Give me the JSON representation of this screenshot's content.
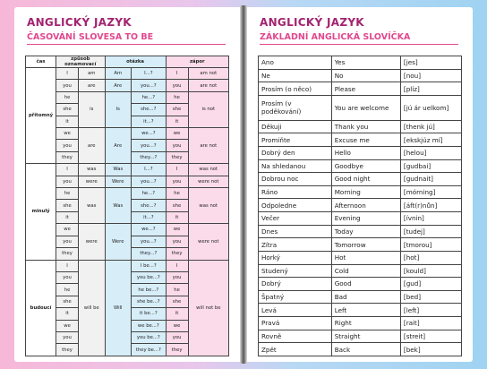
{
  "left_page": {
    "title": "ANGLICKÝ JAZYK",
    "subtitle": "ČASOVÁNÍ SLOVESA TO BE",
    "table": {
      "headers": [
        "čas",
        "způsob oznamovací",
        "otázka",
        "zápor"
      ],
      "sections": [
        {
          "tense": "přítomný",
          "groups": [
            {
              "pronouns": [
                "I"
              ],
              "verb": "am",
              "question_verb": "Am",
              "questions": [
                "I...?"
              ],
              "negation": "am not"
            },
            {
              "pronouns": [
                "you"
              ],
              "verb": "are",
              "question_verb": "Are",
              "questions": [
                "you...?"
              ],
              "negation": "are not"
            },
            {
              "pronouns": [
                "he",
                "she",
                "it"
              ],
              "verb": "is",
              "question_verb": "Is",
              "questions": [
                "he...?",
                "she...?",
                "it...?"
              ],
              "negation": "is not"
            },
            {
              "pronouns": [
                "we",
                "you",
                "they"
              ],
              "verb": "are",
              "question_verb": "Are",
              "questions": [
                "we...?",
                "you...?",
                "they...?"
              ],
              "negation": "are not"
            }
          ]
        },
        {
          "tense": "minulý",
          "groups": [
            {
              "pronouns": [
                "I"
              ],
              "verb": "was",
              "question_verb": "Was",
              "questions": [
                "I...?"
              ],
              "negation": "was not"
            },
            {
              "pronouns": [
                "you"
              ],
              "verb": "were",
              "question_verb": "Were",
              "questions": [
                "you...?"
              ],
              "negation": "were not"
            },
            {
              "pronouns": [
                "he",
                "she",
                "it"
              ],
              "verb": "was",
              "question_verb": "Was",
              "questions": [
                "he...?",
                "she...?",
                "it...?"
              ],
              "negation": "was not"
            },
            {
              "pronouns": [
                "we",
                "you",
                "they"
              ],
              "verb": "were",
              "question_verb": "Were",
              "questions": [
                "we...?",
                "you...?",
                "they...?"
              ],
              "negation": "were not"
            }
          ]
        },
        {
          "tense": "budoucí",
          "groups": [
            {
              "pronouns": [
                "I",
                "you",
                "he",
                "she",
                "it",
                "we",
                "you",
                "they"
              ],
              "verb": "will be",
              "question_verb": "Will",
              "questions": [
                "I be...?",
                "you be...?",
                "he be...?",
                "she be...?",
                "it be...?",
                "we be...?",
                "you be...?",
                "they be...?"
              ],
              "negation": "will not be"
            }
          ]
        }
      ]
    }
  },
  "right_page": {
    "title": "ANGLICKÝ JAZYK",
    "subtitle": "ZÁKLADNÍ ANGLICKÁ SLOVÍČKA",
    "table": {
      "rows": [
        [
          "Ano",
          "Yes",
          "[jes]"
        ],
        [
          "Ne",
          "No",
          "[nou]"
        ],
        [
          "Prosím (o něco)",
          "Please",
          "[plíz]"
        ],
        [
          "Prosím (v poděkování)",
          "You are welcome",
          "[jú ár uelkom]"
        ],
        [
          "Děkuji",
          "Thank you",
          "[thenk jú]"
        ],
        [
          "Promiňte",
          "Excuse me",
          "[ekskjúz mí]"
        ],
        [
          "Dobrý den",
          "Hello",
          "[helou]"
        ],
        [
          "Na shledanou",
          "Goodbye",
          "[gudbai]"
        ],
        [
          "Dobrou noc",
          "Good night",
          "[gudnait]"
        ],
        [
          "Ráno",
          "Morning",
          "[mórning]"
        ],
        [
          "Odpoledne",
          "Afternoon",
          "[áft(r)nůn]"
        ],
        [
          "Večer",
          "Evening",
          "[ívnin]"
        ],
        [
          "Dnes",
          "Today",
          "[tudej]"
        ],
        [
          "Zítra",
          "Tomorrow",
          "[tmorou]"
        ],
        [
          "Horký",
          "Hot",
          "[hot]"
        ],
        [
          "Studený",
          "Cold",
          "[kould]"
        ],
        [
          "Dobrý",
          "Good",
          "[gud]"
        ],
        [
          "Špatný",
          "Bad",
          "[bed]"
        ],
        [
          "Levá",
          "Left",
          "[left]"
        ],
        [
          "Pravá",
          "Right",
          "[rait]"
        ],
        [
          "Rovně",
          "Straight",
          "[streit]"
        ],
        [
          "Zpět",
          "Back",
          "[bek]"
        ]
      ]
    }
  }
}
